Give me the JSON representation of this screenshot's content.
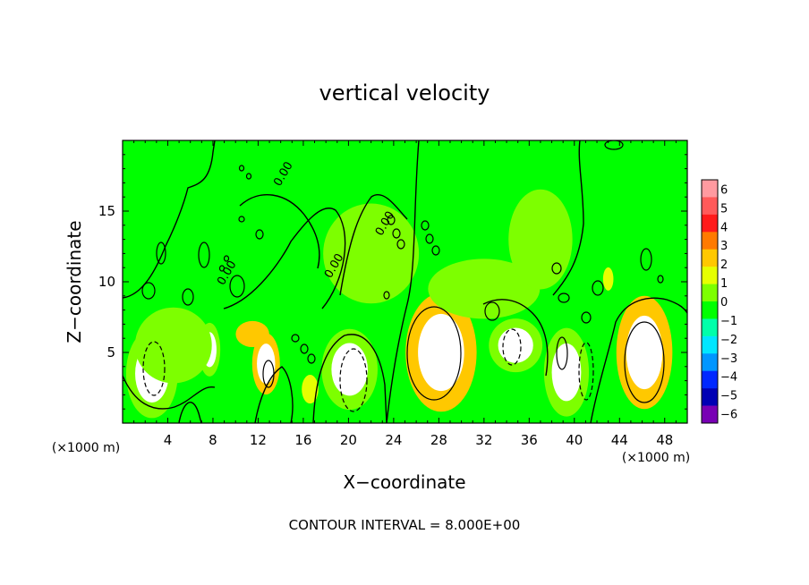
{
  "chart_data": {
    "type": "heatmap",
    "title": "vertical velocity",
    "xlabel": "X−coordinate",
    "ylabel": "Z−coordinate",
    "x_unit_left": "(×1000 m)",
    "x_unit_right": "(×1000 m)",
    "footer": "CONTOUR INTERVAL = 8.000E+00",
    "xlim": [
      0,
      50
    ],
    "ylim": [
      0,
      20
    ],
    "x_ticks": [
      4,
      8,
      12,
      16,
      20,
      24,
      28,
      32,
      36,
      40,
      44,
      48
    ],
    "y_ticks": [
      5,
      10,
      15
    ],
    "background_value": 0.3,
    "colorbar": {
      "levels": [
        6,
        5,
        4,
        3,
        2,
        1,
        0,
        "−1",
        "−2",
        "−3",
        "−4",
        "−5",
        "−6"
      ],
      "colors": [
        "#ff9aa0",
        "#ff5a5a",
        "#ff1a1a",
        "#ff7a00",
        "#ffc800",
        "#e6ff00",
        "#7dff00",
        "#00ff00",
        "#00ffaa",
        "#00e6ff",
        "#0096ff",
        "#0028ff",
        "#0000b4",
        "#7800b4"
      ]
    },
    "contour_labels": [
      {
        "text": "0.00",
        "x": 23.5,
        "y": 14.0
      },
      {
        "text": "0.00",
        "x": 19.0,
        "y": 11.0
      },
      {
        "text": "0.00",
        "x": 14.5,
        "y": 17.5
      },
      {
        "text": "0.00",
        "x": 9.5,
        "y": 10.5
      }
    ],
    "features": [
      {
        "kind": "up",
        "x": 28.2,
        "y": 5.0,
        "rx": 3.3,
        "ry": 4.4,
        "amp": 9.0
      },
      {
        "kind": "up",
        "x": 46.2,
        "y": 5.0,
        "rx": 2.6,
        "ry": 4.2,
        "amp": 9.0
      },
      {
        "kind": "up",
        "x": 12.7,
        "y": 4.2,
        "rx": 1.3,
        "ry": 2.3,
        "amp": 7.0
      },
      {
        "kind": "up",
        "x": 11.5,
        "y": 6.3,
        "rx": 1.6,
        "ry": 1.0,
        "amp": 5.0
      },
      {
        "kind": "up",
        "x": 16.6,
        "y": 2.4,
        "rx": 0.8,
        "ry": 1.1,
        "amp": 4.5
      },
      {
        "kind": "up",
        "x": 43.0,
        "y": 10.2,
        "rx": 0.5,
        "ry": 0.9,
        "amp": 3.5
      },
      {
        "kind": "down",
        "x": 2.6,
        "y": 3.5,
        "rx": 2.4,
        "ry": 3.3,
        "amp": 9.0
      },
      {
        "kind": "down",
        "x": 7.7,
        "y": 5.2,
        "rx": 1.0,
        "ry": 2.0,
        "amp": 8.0
      },
      {
        "kind": "down",
        "x": 20.1,
        "y": 3.8,
        "rx": 2.6,
        "ry": 3.0,
        "amp": 9.0
      },
      {
        "kind": "down",
        "x": 34.8,
        "y": 5.5,
        "rx": 2.5,
        "ry": 2.0,
        "amp": 7.5
      },
      {
        "kind": "down",
        "x": 39.3,
        "y": 3.6,
        "rx": 2.1,
        "ry": 3.3,
        "amp": 8.0
      },
      {
        "kind": "down",
        "x": 4.5,
        "y": 5.5,
        "rx": 3.8,
        "ry": 3.0,
        "amp": 3.0
      },
      {
        "kind": "down",
        "x": 22.0,
        "y": 12.0,
        "rx": 6.0,
        "ry": 5.0,
        "amp": 1.5
      },
      {
        "kind": "down",
        "x": 32.0,
        "y": 9.5,
        "rx": 7.0,
        "ry": 3.0,
        "amp": 1.5
      },
      {
        "kind": "up",
        "x": 35.0,
        "y": 16.5,
        "rx": 8.0,
        "ry": 4.0,
        "amp": 0.4
      },
      {
        "kind": "down",
        "x": 37.0,
        "y": 13.0,
        "rx": 4.0,
        "ry": 5.0,
        "amp": 1.6
      }
    ]
  }
}
